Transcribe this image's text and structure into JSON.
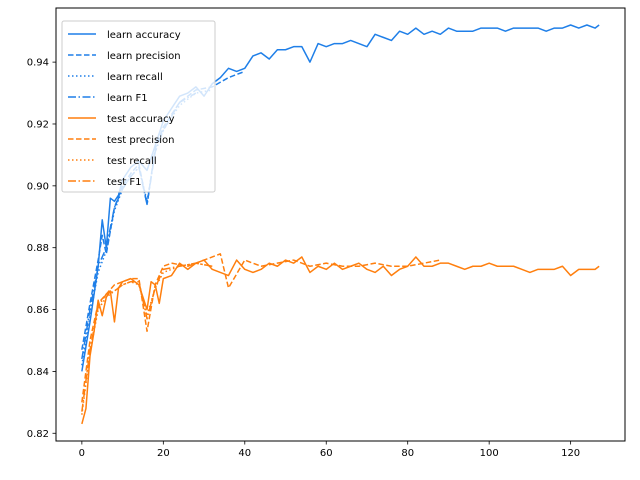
{
  "chart_data": {
    "type": "line",
    "title": "",
    "xlabel": "",
    "ylabel": "",
    "xlim": [
      -6.35,
      133.35
    ],
    "ylim": [
      0.8175,
      0.9575
    ],
    "x_ticks": [
      0,
      20,
      40,
      60,
      80,
      100,
      120
    ],
    "y_ticks": [
      0.82,
      0.84,
      0.86,
      0.88,
      0.9,
      0.92,
      0.94
    ],
    "x_tick_labels": [
      "0",
      "20",
      "40",
      "60",
      "80",
      "100",
      "120"
    ],
    "y_tick_labels": [
      "0.82",
      "0.84",
      "0.86",
      "0.88",
      "0.90",
      "0.92",
      "0.94"
    ],
    "grid": false,
    "legend_position": "top-left",
    "colors": {
      "learn": "#1f7fe8",
      "test": "#ff7f0e"
    },
    "series": [
      {
        "name": "learn accuracy",
        "group": "learn",
        "dash": "solid",
        "x": [
          0,
          2,
          4,
          5,
          6,
          7,
          8,
          9,
          10,
          12,
          14,
          16,
          18,
          20,
          22,
          24,
          26,
          28,
          30,
          32,
          34,
          36,
          38,
          40,
          42,
          44,
          46,
          48,
          50,
          52,
          54,
          56,
          58,
          60,
          62,
          64,
          66,
          68,
          70,
          72,
          74,
          76,
          78,
          80,
          82,
          84,
          86,
          88,
          90,
          92,
          94,
          96,
          98,
          100,
          102,
          104,
          106,
          108,
          110,
          112,
          114,
          116,
          118,
          120,
          122,
          124,
          126,
          127
        ],
        "y": [
          0.84,
          0.856,
          0.874,
          0.889,
          0.88,
          0.896,
          0.895,
          0.897,
          0.902,
          0.906,
          0.908,
          0.905,
          0.913,
          0.921,
          0.925,
          0.929,
          0.93,
          0.932,
          0.929,
          0.933,
          0.935,
          0.938,
          0.937,
          0.938,
          0.942,
          0.943,
          0.941,
          0.944,
          0.944,
          0.945,
          0.945,
          0.94,
          0.946,
          0.945,
          0.946,
          0.946,
          0.947,
          0.946,
          0.945,
          0.949,
          0.948,
          0.947,
          0.95,
          0.949,
          0.951,
          0.949,
          0.95,
          0.949,
          0.951,
          0.95,
          0.95,
          0.95,
          0.951,
          0.951,
          0.951,
          0.95,
          0.951,
          0.951,
          0.951,
          0.951,
          0.95,
          0.951,
          0.951,
          0.952,
          0.951,
          0.952,
          0.951,
          0.952
        ]
      },
      {
        "name": "learn precision",
        "group": "learn",
        "dash": "dashed",
        "x": [
          0,
          2,
          4,
          5,
          6,
          8,
          10,
          12,
          14,
          16,
          18,
          20,
          24,
          28,
          32,
          36,
          40
        ],
        "y": [
          0.847,
          0.862,
          0.876,
          0.884,
          0.878,
          0.893,
          0.9,
          0.904,
          0.907,
          0.894,
          0.912,
          0.919,
          0.927,
          0.931,
          0.932,
          0.935,
          0.937
        ]
      },
      {
        "name": "learn recall",
        "group": "learn",
        "dash": "dotted",
        "x": [
          0,
          2,
          4,
          6,
          8,
          10,
          12,
          14,
          16,
          18,
          20,
          24,
          28,
          32
        ],
        "y": [
          0.842,
          0.858,
          0.872,
          0.879,
          0.892,
          0.899,
          0.903,
          0.906,
          0.895,
          0.911,
          0.918,
          0.926,
          0.93,
          0.931
        ]
      },
      {
        "name": "learn F1",
        "group": "learn",
        "dash": "dashdot",
        "x": [
          0,
          2,
          4,
          6,
          8,
          10,
          12,
          14,
          16,
          18,
          20,
          24,
          28
        ],
        "y": [
          0.844,
          0.86,
          0.874,
          0.88,
          0.893,
          0.899,
          0.903,
          0.906,
          0.894,
          0.911,
          0.918,
          0.927,
          0.93
        ]
      },
      {
        "name": "test accuracy",
        "group": "test",
        "dash": "solid",
        "x": [
          0,
          1,
          2,
          3,
          4,
          5,
          6,
          7,
          8,
          9,
          10,
          12,
          14,
          16,
          17,
          18,
          19,
          20,
          22,
          24,
          26,
          28,
          30,
          32,
          34,
          36,
          38,
          40,
          42,
          44,
          46,
          48,
          50,
          52,
          54,
          56,
          58,
          60,
          62,
          64,
          66,
          68,
          70,
          72,
          74,
          76,
          78,
          80,
          82,
          84,
          86,
          88,
          90,
          92,
          94,
          96,
          98,
          100,
          102,
          104,
          106,
          108,
          110,
          112,
          114,
          116,
          118,
          120,
          122,
          124,
          126,
          127
        ],
        "y": [
          0.823,
          0.828,
          0.845,
          0.853,
          0.863,
          0.858,
          0.864,
          0.866,
          0.856,
          0.867,
          0.869,
          0.87,
          0.868,
          0.86,
          0.869,
          0.868,
          0.862,
          0.87,
          0.871,
          0.875,
          0.873,
          0.875,
          0.876,
          0.873,
          0.872,
          0.871,
          0.876,
          0.873,
          0.872,
          0.873,
          0.875,
          0.874,
          0.876,
          0.875,
          0.877,
          0.872,
          0.874,
          0.873,
          0.875,
          0.873,
          0.874,
          0.875,
          0.873,
          0.872,
          0.874,
          0.871,
          0.873,
          0.874,
          0.877,
          0.874,
          0.874,
          0.875,
          0.875,
          0.874,
          0.873,
          0.874,
          0.874,
          0.875,
          0.874,
          0.874,
          0.874,
          0.873,
          0.872,
          0.873,
          0.873,
          0.873,
          0.874,
          0.871,
          0.873,
          0.873,
          0.873,
          0.874
        ]
      },
      {
        "name": "test precision",
        "group": "test",
        "dash": "dashed",
        "x": [
          0,
          2,
          4,
          6,
          8,
          10,
          12,
          14,
          16,
          18,
          20,
          22,
          26,
          30,
          34,
          36,
          40,
          44,
          48,
          52,
          56,
          60,
          64,
          68,
          72,
          76,
          80,
          84,
          88
        ],
        "y": [
          0.83,
          0.85,
          0.862,
          0.865,
          0.868,
          0.869,
          0.87,
          0.87,
          0.853,
          0.868,
          0.874,
          0.875,
          0.874,
          0.876,
          0.878,
          0.867,
          0.876,
          0.874,
          0.875,
          0.876,
          0.874,
          0.875,
          0.874,
          0.874,
          0.875,
          0.874,
          0.874,
          0.875,
          0.876
        ]
      },
      {
        "name": "test recall",
        "group": "test",
        "dash": "dotted",
        "x": [
          0,
          2,
          4,
          6,
          8,
          10,
          12,
          14,
          16,
          18,
          20,
          24,
          28,
          32
        ],
        "y": [
          0.826,
          0.846,
          0.86,
          0.864,
          0.866,
          0.868,
          0.869,
          0.868,
          0.858,
          0.867,
          0.872,
          0.874,
          0.875,
          0.874
        ]
      },
      {
        "name": "test F1",
        "group": "test",
        "dash": "dashdot",
        "x": [
          0,
          2,
          4,
          6,
          8,
          10,
          12,
          14,
          16,
          18,
          20,
          24,
          28,
          32
        ],
        "y": [
          0.827,
          0.847,
          0.861,
          0.865,
          0.866,
          0.868,
          0.869,
          0.869,
          0.857,
          0.867,
          0.873,
          0.874,
          0.875,
          0.874
        ]
      }
    ]
  }
}
